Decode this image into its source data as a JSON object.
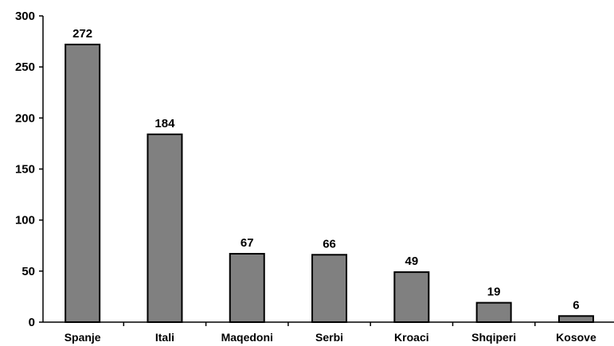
{
  "chart_data": {
    "type": "bar",
    "categories": [
      "Spanje",
      "Itali",
      "Maqedoni",
      "Serbi",
      "Kroaci",
      "Shqiperi",
      "Kosove"
    ],
    "values": [
      272,
      184,
      67,
      66,
      49,
      19,
      6
    ],
    "data_labels": [
      "272",
      "184",
      "67",
      "66",
      "49",
      "19",
      "6"
    ],
    "yticks": [
      0,
      50,
      100,
      150,
      200,
      250,
      300
    ],
    "ylim": [
      0,
      300
    ],
    "grid": false,
    "legend": "none",
    "bar_color": "#808080",
    "bar_edge_color": "#000000"
  }
}
